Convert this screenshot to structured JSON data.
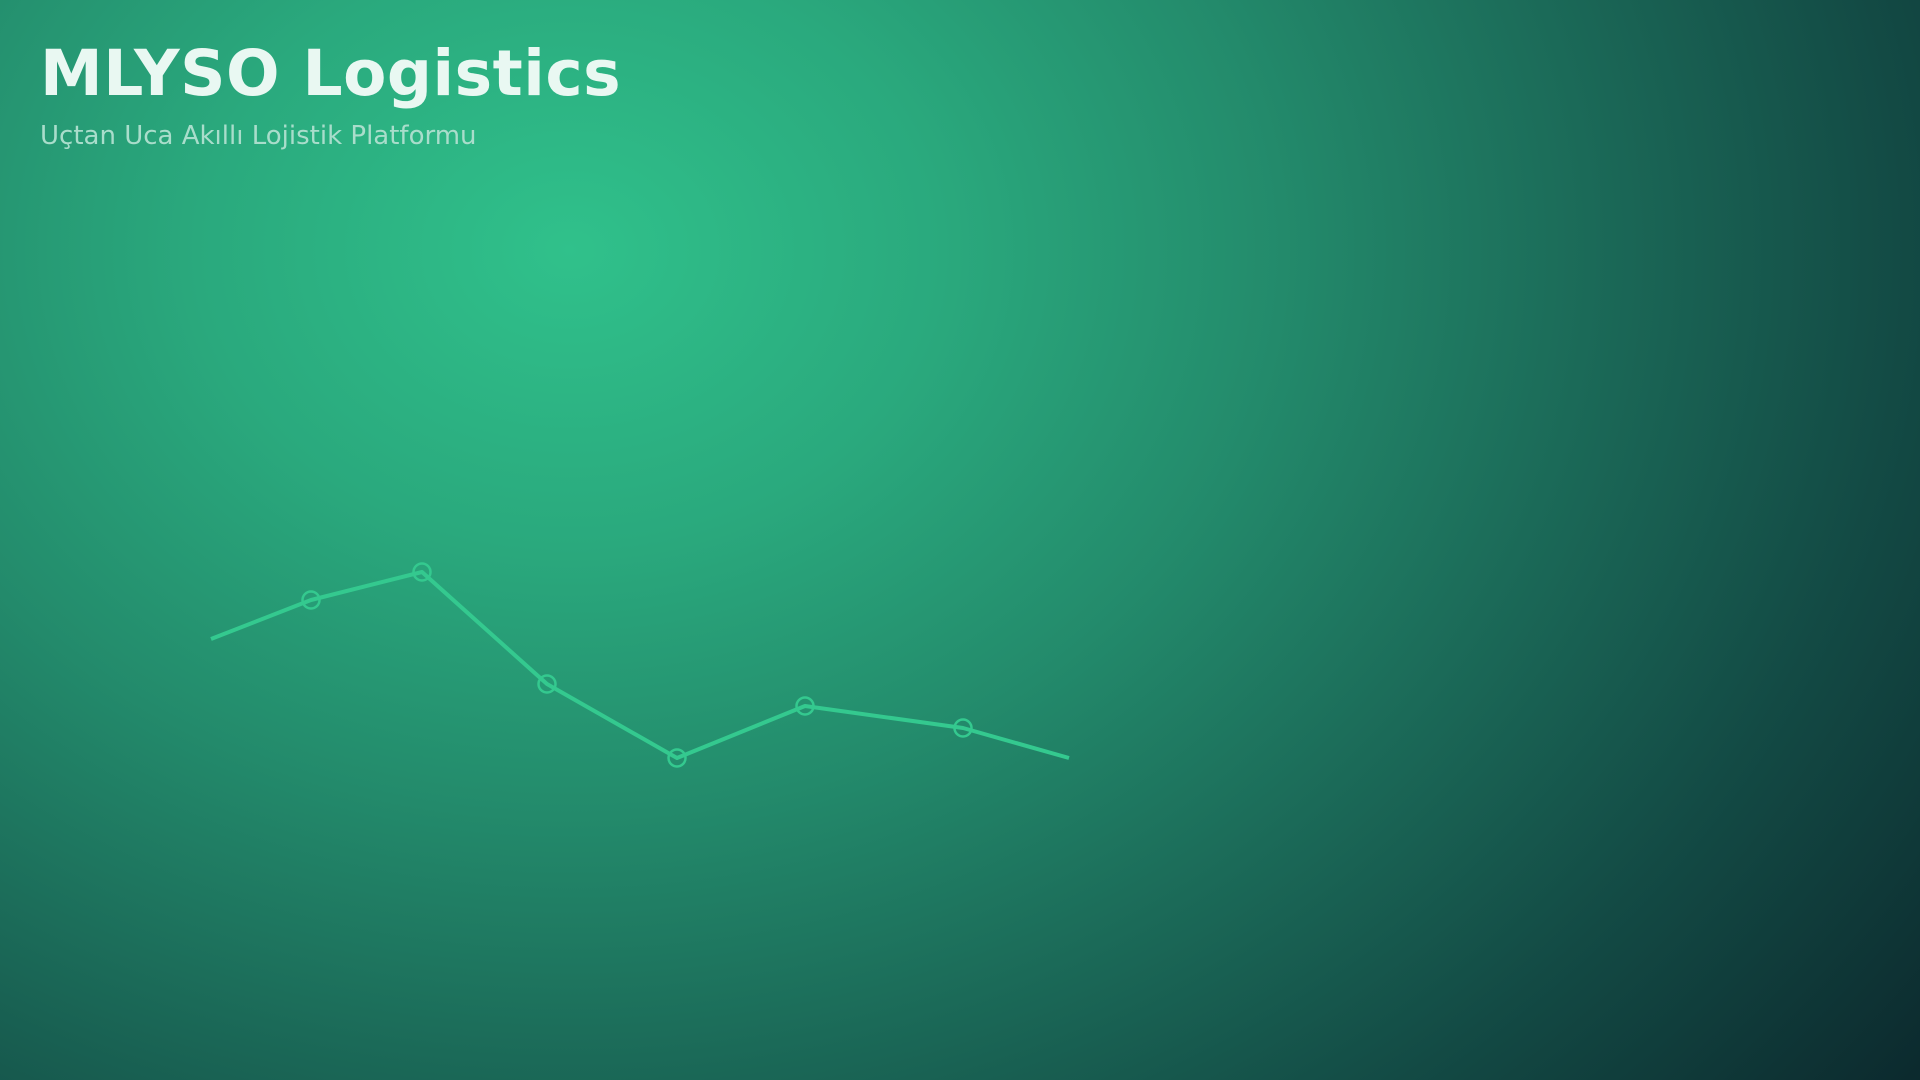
{
  "brand": {
    "title": "MLYSO Logistics",
    "subtitle": "Uçtan Uca Akıllı Lojistik Platformu"
  },
  "colors": {
    "title": "#e9f8f2",
    "subtitle": "#a9ddcb",
    "line": "#34c98f",
    "background_light": "#30c18b",
    "background_dark": "#0c2a2e"
  }
}
